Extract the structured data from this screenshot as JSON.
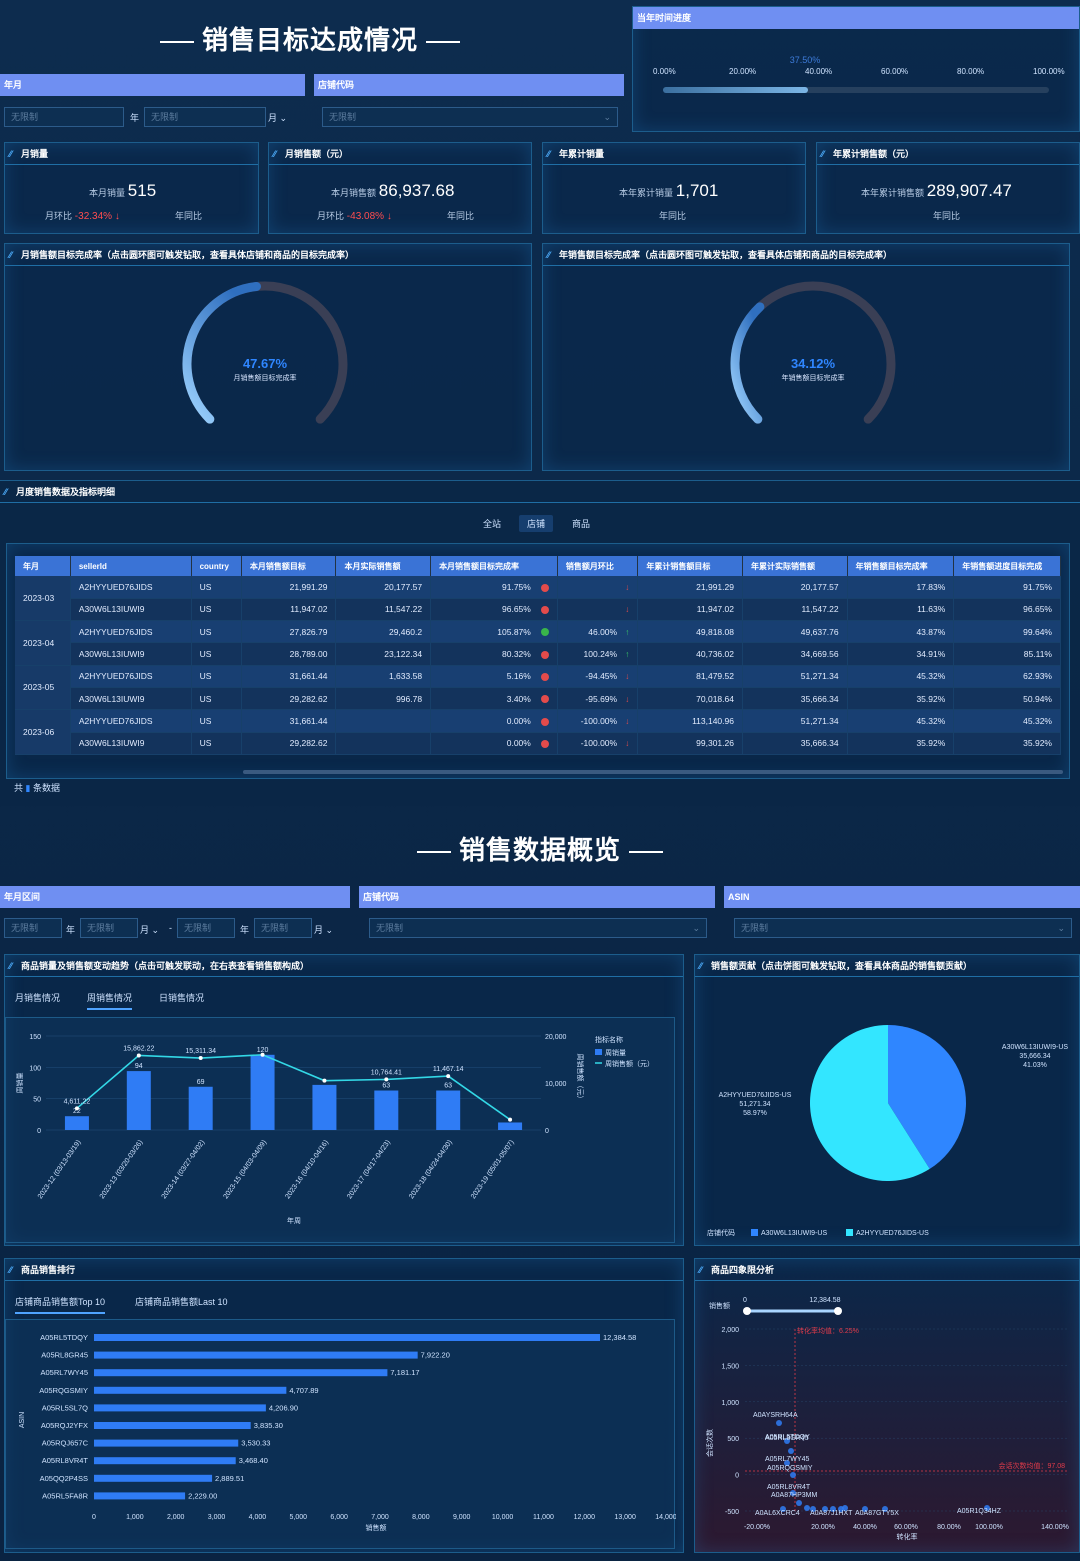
{
  "section1": {
    "title": "销售目标达成情况",
    "filter_month_label": "年月",
    "filter_shop_label": "店铺代码",
    "ph": "无限制",
    "year_unit": "年",
    "month_unit": "月"
  },
  "progress": {
    "label": "当年时间进度",
    "ticks": [
      "0.00%",
      "20.00%",
      "40.00%",
      "60.00%",
      "80.00%",
      "100.00%"
    ],
    "value_label": "37.50%",
    "value": 0.375
  },
  "kpis": [
    {
      "title": "月销量",
      "label": "本月销量",
      "value": "515",
      "mom_label": "月环比",
      "mom": "-32.34%",
      "yoy_label": "年同比"
    },
    {
      "title": "月销售额（元）",
      "label": "本月销售额",
      "value": "86,937.68",
      "mom_label": "月环比",
      "mom": "-43.08%",
      "yoy_label": "年同比"
    },
    {
      "title": "年累计销量",
      "label": "本年累计销量",
      "value": "1,701",
      "yoy_label": "年同比"
    },
    {
      "title": "年累计销售额（元）",
      "label": "本年累计销售额",
      "value": "289,907.47",
      "yoy_label": "年同比"
    }
  ],
  "gauges": [
    {
      "title": "月销售额目标完成率（点击圆环图可触发钻取，查看具体店铺和商品的目标完成率）",
      "value_label": "47.67%",
      "value": 0.4767,
      "sub": "月销售额目标完成率"
    },
    {
      "title": "年销售额目标完成率（点击圆环图可触发钻取，查看具体店铺和商品的目标完成率）",
      "value_label": "34.12%",
      "value": 0.3412,
      "sub": "年销售额目标完成率"
    }
  ],
  "table": {
    "title": "月度销售数据及指标明细",
    "tabs": [
      "全站",
      "店铺",
      "商品"
    ],
    "headers": [
      "年月",
      "sellerId",
      "country",
      "本月销售额目标",
      "本月实际销售额",
      "本月销售额目标完成率",
      "销售额月环比",
      "年累计销售额目标",
      "年累计实际销售额",
      "年销售额目标完成率",
      "年销售额进度目标完成"
    ],
    "rows": [
      {
        "ym": "2023-03",
        "seller": "A2HYYUED76JIDS",
        "c": "US",
        "t": "21,991.29",
        "a": "20,177.57",
        "r": "91.75%",
        "dot": "r",
        "mom": "",
        "arr": "d",
        "yt": "21,991.29",
        "ya": "20,177.57",
        "yr": "17.83%",
        "yp": "91.75%"
      },
      {
        "ym": "",
        "seller": "A30W6L13IUWI9",
        "c": "US",
        "t": "11,947.02",
        "a": "11,547.22",
        "r": "96.65%",
        "dot": "r",
        "mom": "",
        "arr": "d",
        "yt": "11,947.02",
        "ya": "11,547.22",
        "yr": "11.63%",
        "yp": "96.65%"
      },
      {
        "ym": "2023-04",
        "seller": "A2HYYUED76JIDS",
        "c": "US",
        "t": "27,826.79",
        "a": "29,460.2",
        "r": "105.87%",
        "dot": "g",
        "mom": "46.00%",
        "arr": "u",
        "yt": "49,818.08",
        "ya": "49,637.76",
        "yr": "43.87%",
        "yp": "99.64%"
      },
      {
        "ym": "",
        "seller": "A30W6L13IUWI9",
        "c": "US",
        "t": "28,789.00",
        "a": "23,122.34",
        "r": "80.32%",
        "dot": "r",
        "mom": "100.24%",
        "arr": "u",
        "yt": "40,736.02",
        "ya": "34,669.56",
        "yr": "34.91%",
        "yp": "85.11%"
      },
      {
        "ym": "2023-05",
        "seller": "A2HYYUED76JIDS",
        "c": "US",
        "t": "31,661.44",
        "a": "1,633.58",
        "r": "5.16%",
        "dot": "r",
        "mom": "-94.45%",
        "arr": "d",
        "yt": "81,479.52",
        "ya": "51,271.34",
        "yr": "45.32%",
        "yp": "62.93%"
      },
      {
        "ym": "",
        "seller": "A30W6L13IUWI9",
        "c": "US",
        "t": "29,282.62",
        "a": "996.78",
        "r": "3.40%",
        "dot": "r",
        "mom": "-95.69%",
        "arr": "d",
        "yt": "70,018.64",
        "ya": "35,666.34",
        "yr": "35.92%",
        "yp": "50.94%"
      },
      {
        "ym": "2023-06",
        "seller": "A2HYYUED76JIDS",
        "c": "US",
        "t": "31,661.44",
        "a": "",
        "r": "0.00%",
        "dot": "r",
        "mom": "-100.00%",
        "arr": "d",
        "yt": "113,140.96",
        "ya": "51,271.34",
        "yr": "45.32%",
        "yp": "45.32%"
      },
      {
        "ym": "",
        "seller": "A30W6L13IUWI9",
        "c": "US",
        "t": "29,282.62",
        "a": "",
        "r": "0.00%",
        "dot": "r",
        "mom": "-100.00%",
        "arr": "d",
        "yt": "99,301.26",
        "ya": "35,666.34",
        "yr": "35.92%",
        "yp": "35.92%"
      }
    ],
    "footer_total": "共",
    "footer_count": "条数据"
  },
  "section2": {
    "title": "销售数据概览",
    "filter_range_label": "年月区间",
    "filter_shop_label": "店铺代码",
    "filter_asin_label": "ASIN",
    "ph": "无限制",
    "year_unit": "年",
    "month_unit": "月",
    "dash": "-"
  },
  "trend": {
    "title": "商品销量及销售额变动趋势（点击可触发联动，在右表查看销售额构成）",
    "tabs": [
      "月销售情况",
      "周销售情况",
      "日销售情况"
    ],
    "yleft": "周销量",
    "yright": "周销售额（元）",
    "xlabel": "年周",
    "legend_title": "指标名称",
    "legend": [
      "周销量",
      "周销售额（元）"
    ],
    "yleft_ticks": [
      "0",
      "50",
      "100",
      "150"
    ],
    "yright_ticks": [
      "0",
      "10,000",
      "20,000"
    ],
    "chart_data": {
      "type": "bar+line",
      "categories": [
        "2023-12 (03/13-03/19)",
        "2023-13 (03/20-03/26)",
        "2023-14 (03/27-04/02)",
        "2023-15 (04/03-04/09)",
        "2023-16 (04/10-04/16)",
        "2023-17 (04/17-04/23)",
        "2023-18 (04/24-04/30)",
        "2023-19 (05/01-05/07)"
      ],
      "series": [
        {
          "name": "周销量",
          "values": [
            22,
            94,
            69,
            120,
            72,
            63,
            63,
            12
          ]
        },
        {
          "name": "周销售额（元）",
          "values": [
            4611.22,
            15862.22,
            15311.34,
            16000,
            10500,
            10764.41,
            11467.14,
            2200
          ]
        }
      ],
      "bar_labels": [
        "22",
        "94",
        "69",
        "120",
        "",
        "63",
        "63",
        ""
      ],
      "line_labels": [
        "4,611.22",
        "15,862.22",
        "15,311.34",
        "",
        "",
        "10,764.41",
        "11,467.14",
        ""
      ],
      "ylim_left": [
        0,
        150
      ],
      "ylim_right": [
        0,
        20000
      ]
    }
  },
  "pie": {
    "title": "销售额贡献（点击饼图可触发钻取，查看具体商品的销售额贡献）",
    "legend_title": "店铺代码",
    "legend": [
      "A30W6L13IUWI9-US",
      "A2HYYUED76JIDS-US"
    ],
    "chart_data": {
      "type": "pie",
      "labels": [
        "A30W6L13IUWI9-US",
        "A2HYYUED76JIDS-US"
      ],
      "values": [
        35666.34,
        51271.34
      ],
      "value_labels": [
        "35,666.34",
        "51,271.34"
      ],
      "pct": [
        "41.03%",
        "58.97%"
      ],
      "colors": [
        "#2f86ff",
        "#33e6ff"
      ]
    }
  },
  "rank": {
    "title": "商品销售排行",
    "tabs": [
      "店铺商品销售额Top 10",
      "店铺商品销售额Last 10"
    ],
    "ylabel": "ASIN",
    "xlabel": "销售额",
    "xticks": [
      "0",
      "1,000",
      "2,000",
      "3,000",
      "4,000",
      "5,000",
      "6,000",
      "7,000",
      "8,000",
      "9,000",
      "10,000",
      "11,000",
      "12,000",
      "13,000",
      "14,000"
    ],
    "chart_data": {
      "type": "bar",
      "orientation": "horizontal",
      "categories": [
        "A05RL5TDQY",
        "A05RL8GR45",
        "A05RL7WY45",
        "A05RQGSMIY",
        "A05RL5SL7Q",
        "A05RQJ2YFX",
        "A05RQJ657C",
        "A05RL8VR4T",
        "A05QQ2P4SS",
        "A05RL5FA8R"
      ],
      "values": [
        12384.58,
        7922.2,
        7181.17,
        4707.89,
        4206.9,
        3835.3,
        3530.33,
        3468.4,
        2889.51,
        2229.0
      ],
      "value_labels": [
        "12,384.58",
        "7,922.20",
        "7,181.17",
        "4,707.89",
        "4,206.90",
        "3,835.30",
        "3,530.33",
        "3,468.40",
        "2,889.51",
        "2,229.00"
      ],
      "xlim": [
        0,
        14000
      ]
    }
  },
  "quad": {
    "title": "商品四象限分析",
    "slider_label": "销售额",
    "slider_min": "0",
    "slider_max": "12,384.58",
    "ylabel": "会话次数",
    "xlabel": "转化率",
    "yticks": [
      "-500",
      "0",
      "500",
      "1,000",
      "1,500",
      "2,000"
    ],
    "xticks": [
      "-20.00%",
      "20.00%",
      "40.00%",
      "60.00%",
      "80.00%",
      "100.00%",
      "140.00%"
    ],
    "avg_x_label": "转化率均值：6.25%",
    "avg_y_label": "会话次数均值：97.08",
    "points": [
      "A0AYSRH64A",
      "A05RL5TDQY",
      "A05RL8GR45",
      "A05RL7WY45",
      "A05RQGSMIY",
      "A05RL8VR4T",
      "A0A87HP3MM",
      "A0AL6XCRC4",
      "A0A87J1HXT",
      "A0A87GTY5X",
      "A05R1Q34HZ"
    ]
  }
}
